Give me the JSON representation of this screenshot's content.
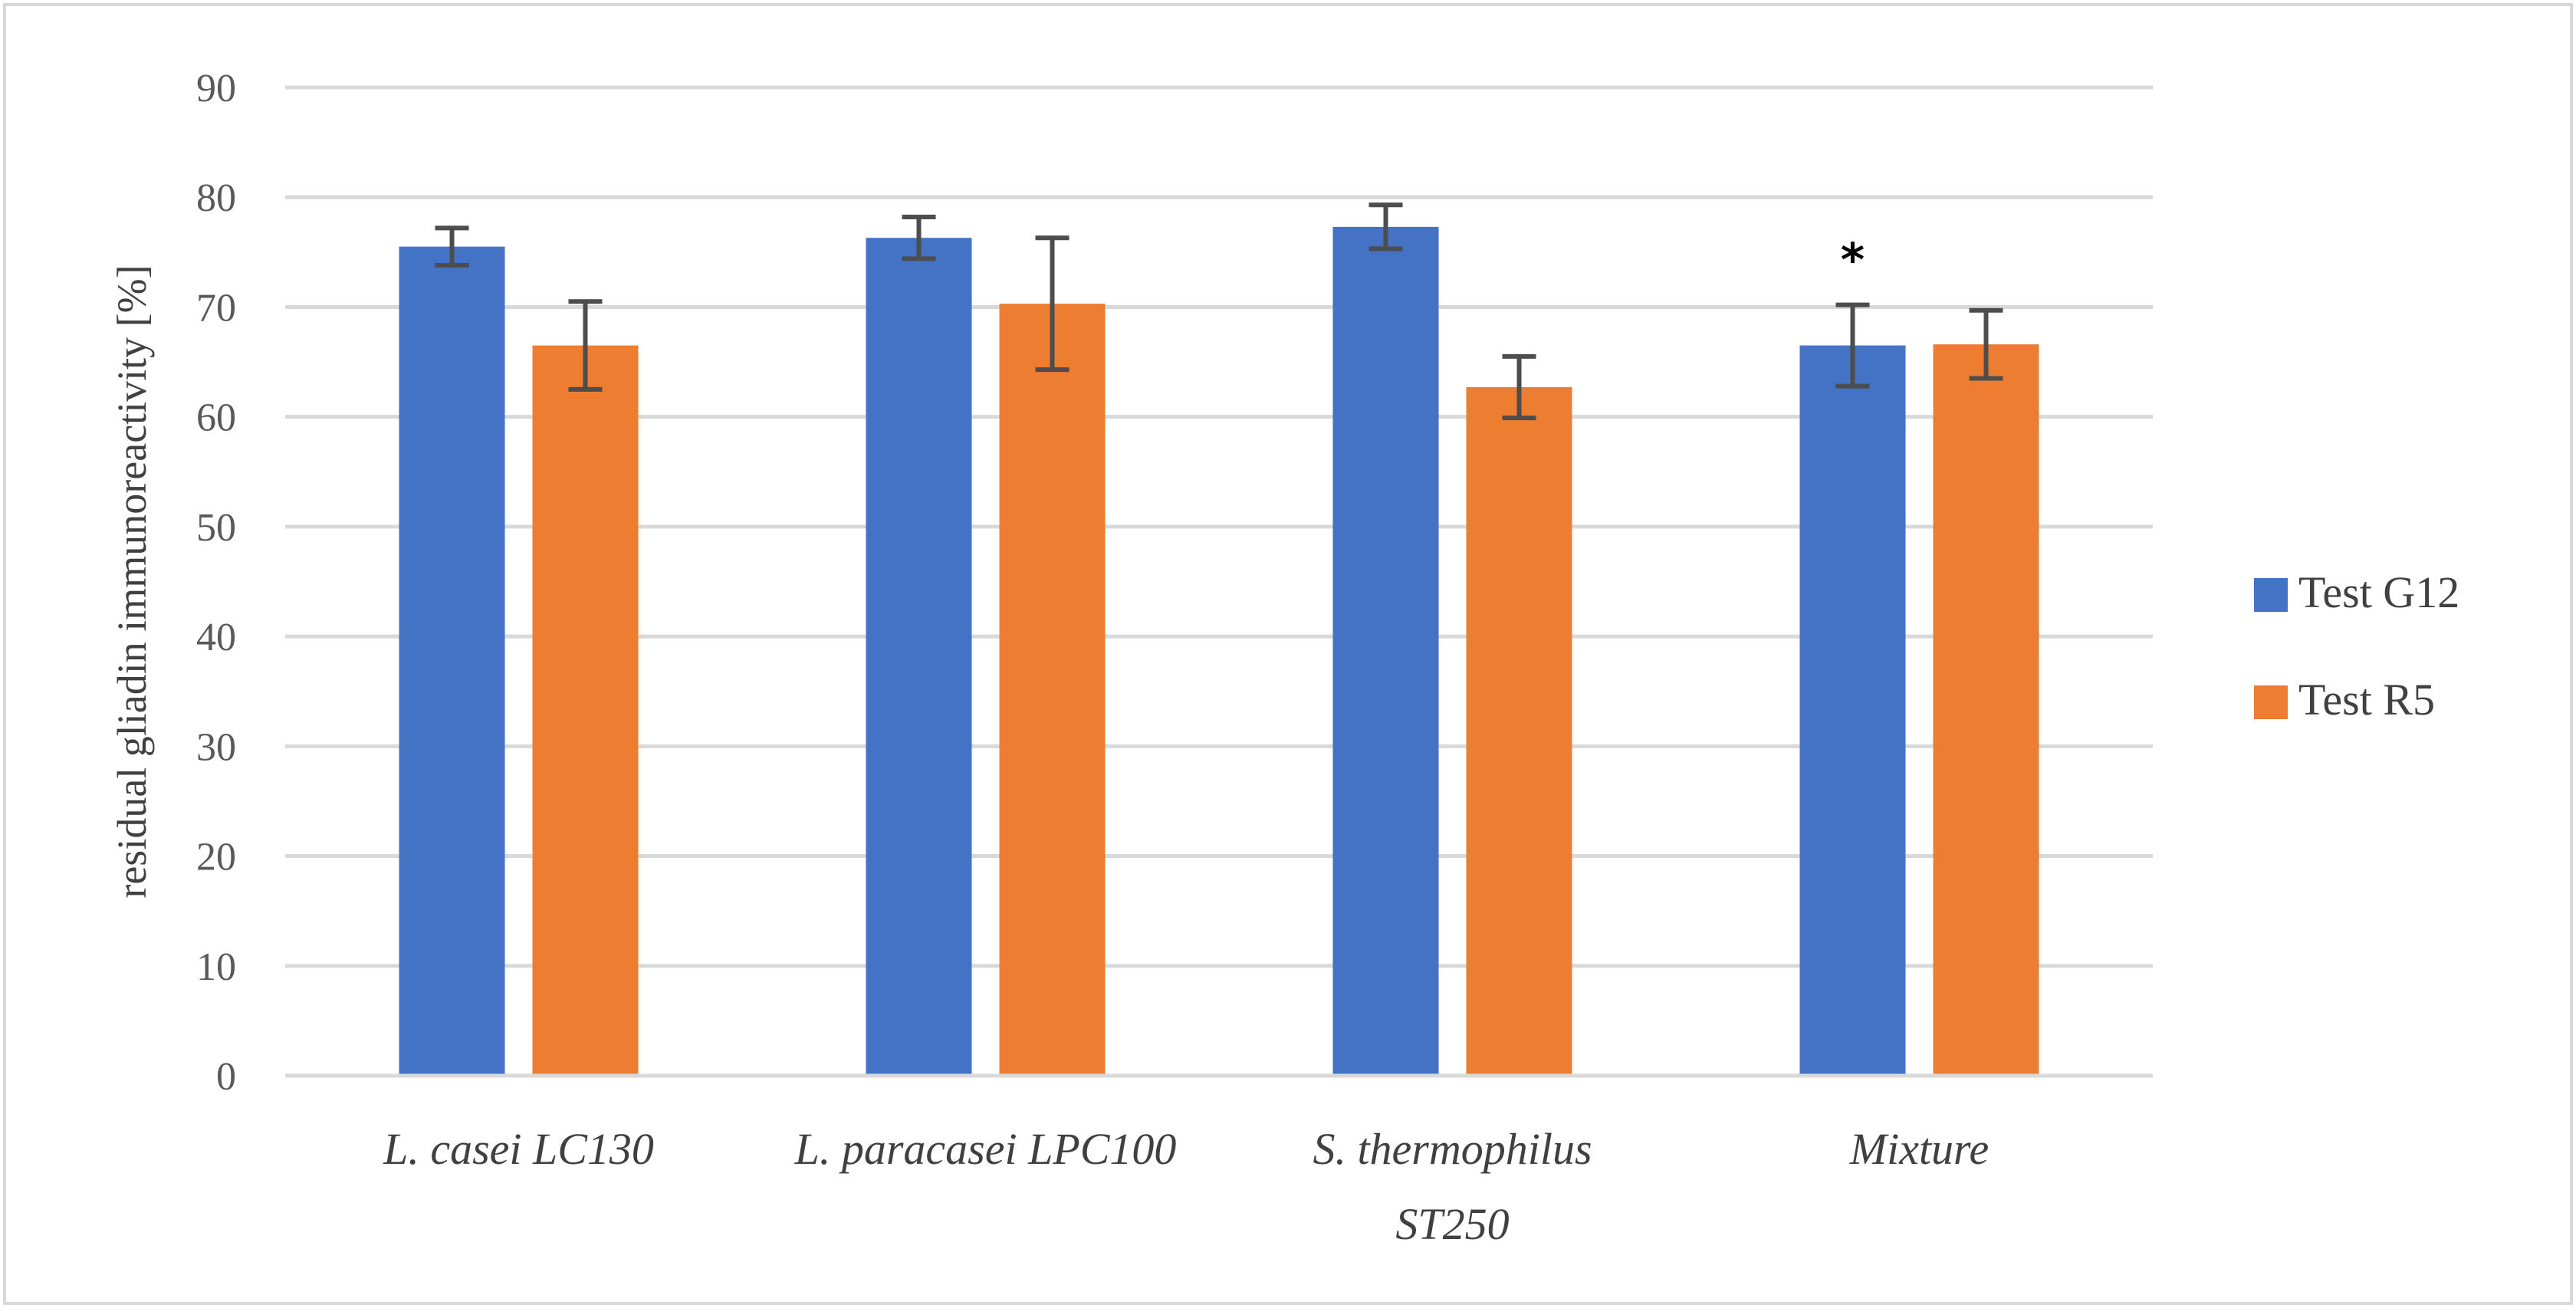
{
  "chart_data": {
    "type": "bar",
    "title": "",
    "xlabel": "",
    "ylabel": "residual gliadin immunoreactivity [%]",
    "ylim": [
      0,
      90
    ],
    "yticks": [
      0,
      10,
      20,
      30,
      40,
      50,
      60,
      70,
      80,
      90
    ],
    "grid": true,
    "legend_position": "right",
    "categories": [
      [
        "L. casei LC130"
      ],
      [
        "L. paracasei LPC100"
      ],
      [
        "S.  thermophilus",
        "ST250"
      ],
      [
        "Mixture"
      ]
    ],
    "series": [
      {
        "name": "Test G12",
        "color": "#4472C4",
        "values": [
          75.5,
          76.3,
          77.3,
          66.5
        ],
        "errors": [
          1.7,
          1.9,
          2.0,
          3.7
        ]
      },
      {
        "name": "Test R5",
        "color": "#ED7D31",
        "values": [
          66.5,
          70.3,
          62.7,
          66.6
        ],
        "errors": [
          4.0,
          6.0,
          2.8,
          3.1
        ]
      }
    ],
    "annotations": [
      {
        "text": "*",
        "category_index": 3,
        "series_index": 0
      }
    ],
    "colors": {
      "grid": "#D9D9D9",
      "axis": "#D9D9D9",
      "error_bar": "#4D4D4D",
      "frame": "#D9D9D9"
    }
  }
}
